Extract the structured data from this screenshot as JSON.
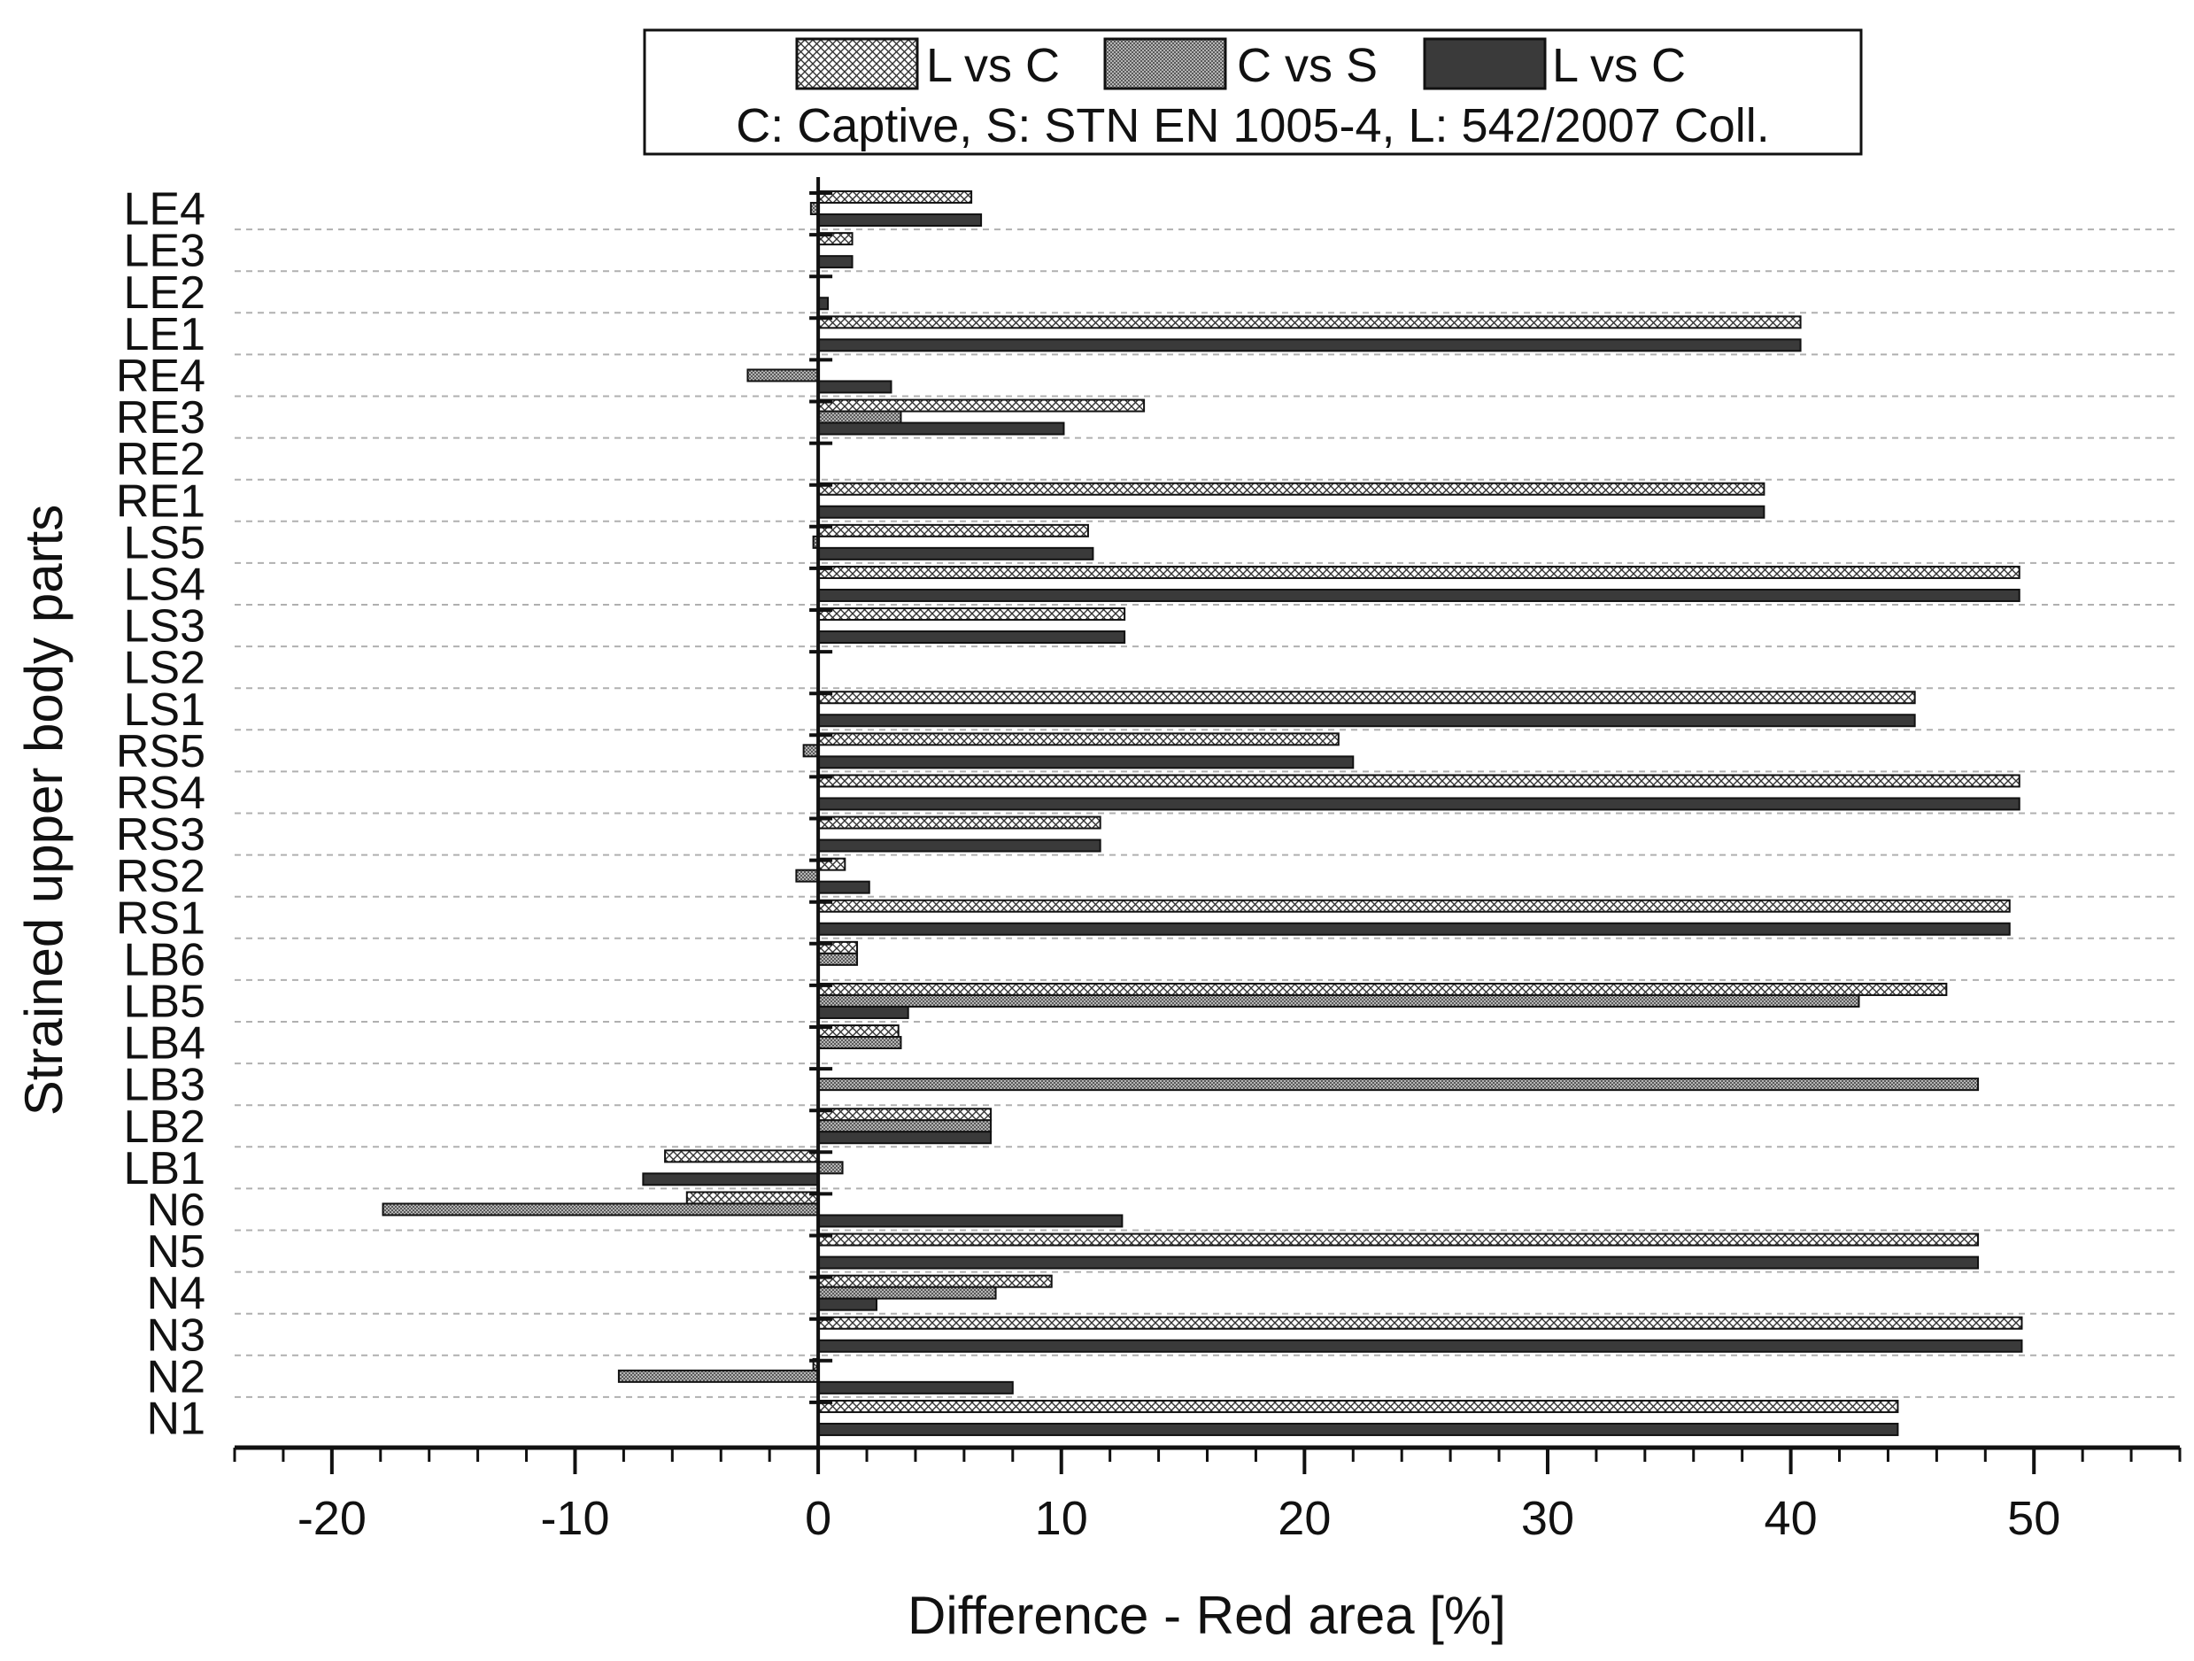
{
  "chart_data": {
    "type": "bar",
    "orientation": "horizontal",
    "title": "",
    "xlabel": "Difference - Red area [%]",
    "ylabel": "Strained upper body parts",
    "xlim": [
      -24,
      56
    ],
    "xticks": [
      -20,
      -10,
      0,
      10,
      20,
      30,
      40,
      50
    ],
    "xtick_labels": [
      "-20",
      "-10",
      "0",
      "10",
      "20",
      "30",
      "40",
      "50"
    ],
    "grid": "horizontal dashed",
    "legend_placement": "top-center",
    "legend_note": "C: Captive, S: STN EN 1005-4, L: 542/2007 Coll.",
    "categories": [
      "LE4",
      "LE3",
      "LE2",
      "LE1",
      "RE4",
      "RE3",
      "RE2",
      "RE1",
      "LS5",
      "LS4",
      "LS3",
      "LS2",
      "LS1",
      "RS5",
      "RS4",
      "RS3",
      "RS2",
      "RS1",
      "LB6",
      "LB5",
      "LB4",
      "LB3",
      "LB2",
      "LB1",
      "N6",
      "N5",
      "N4",
      "N3",
      "N2",
      "N1"
    ],
    "series": [
      {
        "name": "L vs C",
        "pattern": "crosshatch",
        "values": [
          6.3,
          1.4,
          0,
          40.4,
          0,
          13.4,
          0,
          38.9,
          11.1,
          49.4,
          12.6,
          0,
          45.1,
          21.4,
          49.4,
          11.6,
          1.1,
          49.0,
          1.6,
          46.4,
          3.3,
          0,
          7.1,
          -6.3,
          -5.4,
          47.7,
          9.6,
          49.5,
          -0.2,
          44.4
        ]
      },
      {
        "name": "C vs S",
        "pattern": "fine-grid",
        "values": [
          -0.3,
          0,
          0,
          0,
          -2.9,
          3.4,
          0,
          0,
          -0.2,
          0,
          0,
          0,
          0,
          -0.6,
          0,
          0,
          -0.9,
          0,
          1.6,
          42.8,
          3.4,
          47.7,
          7.1,
          1.0,
          -17.9,
          0,
          7.3,
          0,
          -8.2,
          0
        ]
      },
      {
        "name": "L vs C",
        "pattern": "solid-dark",
        "values": [
          6.7,
          1.4,
          0.4,
          40.4,
          3.0,
          10.1,
          0,
          38.9,
          11.3,
          49.4,
          12.6,
          0,
          45.1,
          22.0,
          49.4,
          11.6,
          2.1,
          49.0,
          0,
          3.7,
          0,
          0,
          7.1,
          -7.2,
          12.5,
          47.7,
          2.4,
          49.5,
          8.0,
          44.4
        ]
      }
    ]
  }
}
